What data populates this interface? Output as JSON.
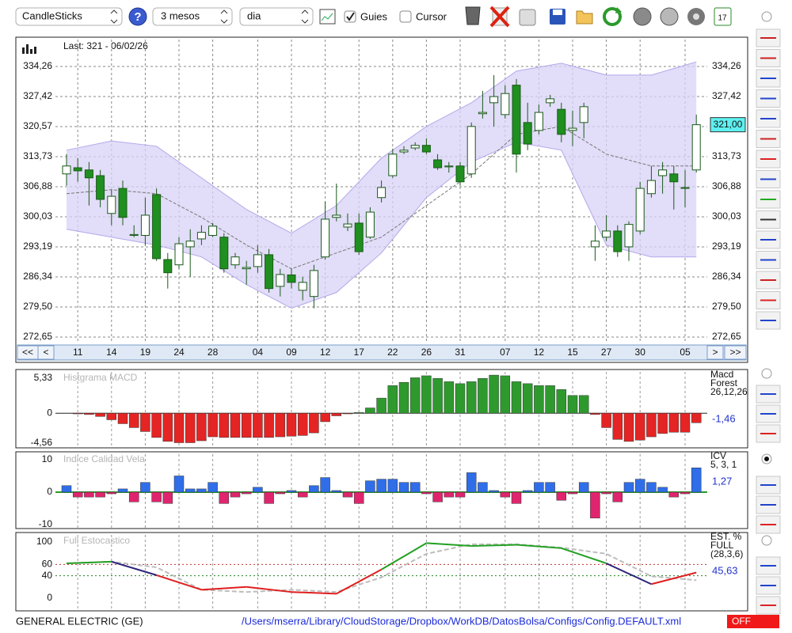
{
  "toolbar": {
    "chart_type": "CandleSticks",
    "help": "?",
    "period": "3 mesos",
    "interval": "dia",
    "guides": "Guies",
    "cursor": "Cursor",
    "calendar_day": "17"
  },
  "chart_data": [
    {
      "type": "candlestick",
      "last": "Last: 321 - 06/02/26",
      "current": 321.0,
      "current_label": "321,00",
      "ylim": [
        272.65,
        334.26
      ],
      "yticks": [
        {
          "value": 334.26,
          "label": "334,26"
        },
        {
          "value": 327.42,
          "label": "327,42"
        },
        {
          "value": 320.57,
          "label": "320,57"
        },
        {
          "value": 313.73,
          "label": "313,73"
        },
        {
          "value": 306.88,
          "label": "306,88"
        },
        {
          "value": 300.03,
          "label": "300,03"
        },
        {
          "value": 293.19,
          "label": "293,19"
        },
        {
          "value": 286.34,
          "label": "286,34"
        },
        {
          "value": 279.5,
          "label": "279,50"
        },
        {
          "value": 272.65,
          "label": "272,65"
        }
      ],
      "grid": true,
      "up_color": "#ffffff",
      "down_color": "#1f8f1f",
      "open": [
        309.8,
        311.2,
        310.7,
        309.4,
        300.8,
        306.5,
        295.8,
        295.8,
        305.1,
        290.3,
        289.1,
        293.2,
        295.0,
        295.8,
        295.4,
        289.1,
        288.2,
        288.7,
        291.4,
        284.2,
        286.8,
        283.3,
        281.9,
        290.9,
        299.9,
        297.7,
        298.6,
        295.4,
        304.4,
        309.4,
        314.8,
        315.7,
        316.3,
        313.0,
        311.4,
        311.6,
        309.8,
        323.5,
        326.0,
        323.3,
        330.0,
        321.5,
        319.7,
        326.0,
        324.5,
        319.7,
        321.5,
        293.2,
        295.4,
        296.8,
        293.2,
        296.8,
        305.3,
        309.4,
        309.8,
        306.5,
        310.7
      ],
      "high": [
        314.3,
        313.4,
        312.5,
        310.7,
        306.2,
        308.3,
        298.1,
        304.4,
        306.5,
        291.8,
        295.4,
        297.2,
        298.1,
        298.6,
        296.3,
        291.8,
        290.0,
        293.6,
        292.7,
        288.2,
        288.2,
        286.4,
        289.1,
        303.5,
        307.6,
        300.8,
        300.8,
        302.2,
        308.3,
        315.5,
        316.1,
        317.0,
        317.9,
        314.3,
        312.5,
        312.5,
        321.5,
        328.7,
        332.3,
        330.0,
        331.4,
        326.0,
        325.6,
        327.8,
        326.0,
        324.2,
        326.0,
        298.1,
        300.4,
        298.1,
        299.0,
        308.0,
        311.6,
        312.5,
        311.6,
        310.7,
        323.3
      ],
      "low": [
        307.1,
        308.0,
        302.6,
        302.2,
        298.1,
        298.1,
        295.4,
        293.6,
        290.0,
        283.7,
        288.2,
        286.4,
        293.6,
        295.4,
        287.3,
        288.2,
        284.6,
        287.3,
        282.8,
        281.9,
        283.7,
        281.0,
        279.2,
        290.3,
        299.0,
        296.8,
        291.4,
        295.0,
        303.3,
        308.9,
        314.3,
        315.2,
        314.3,
        310.7,
        310.1,
        307.1,
        308.9,
        322.4,
        320.6,
        322.4,
        310.1,
        315.2,
        318.8,
        325.1,
        317.0,
        316.1,
        317.9,
        290.0,
        294.5,
        290.9,
        290.0,
        296.1,
        304.4,
        305.3,
        301.7,
        302.2,
        310.1
      ],
      "close": [
        311.6,
        310.5,
        308.9,
        304.0,
        304.7,
        299.9,
        296.0,
        300.4,
        290.5,
        287.3,
        293.9,
        294.5,
        296.5,
        297.9,
        288.2,
        290.9,
        288.5,
        291.4,
        283.7,
        286.9,
        285.1,
        285.1,
        287.8,
        299.5,
        300.4,
        298.4,
        292.1,
        301.1,
        306.7,
        314.3,
        315.2,
        316.3,
        314.8,
        311.2,
        311.6,
        308.0,
        320.6,
        323.8,
        327.4,
        328.1,
        314.3,
        316.6,
        323.8,
        326.9,
        318.8,
        320.2,
        325.1,
        294.5,
        296.8,
        292.1,
        298.3,
        306.5,
        308.3,
        310.7,
        308.0,
        306.7,
        321.0
      ],
      "bands": {
        "x": [
          0,
          4,
          8,
          12,
          16,
          20,
          24,
          28,
          32,
          36,
          40,
          44,
          48,
          52,
          56
        ],
        "upper": [
          315.2,
          317.3,
          316.1,
          308.9,
          301.7,
          296.3,
          302.6,
          313.4,
          320.6,
          326.0,
          333.2,
          335.0,
          332.3,
          332.3,
          335.3
        ],
        "middle": [
          305.3,
          306.2,
          305.3,
          299.9,
          293.6,
          288.2,
          291.8,
          295.4,
          302.6,
          309.8,
          318.8,
          320.6,
          314.3,
          311.6,
          311.6
        ],
        "lower": [
          297.2,
          295.4,
          293.6,
          290.9,
          284.6,
          279.2,
          282.8,
          291.8,
          304.4,
          312.5,
          317.0,
          315.2,
          293.6,
          290.9,
          290.9
        ]
      },
      "date_ticks": [
        {
          "value": 1,
          "label": "11"
        },
        {
          "value": 4,
          "label": "14"
        },
        {
          "value": 7,
          "label": "19"
        },
        {
          "value": 10,
          "label": "24"
        },
        {
          "value": 13,
          "label": "28"
        },
        {
          "value": 17,
          "label": "04"
        },
        {
          "value": 20,
          "label": "09"
        },
        {
          "value": 23,
          "label": "12"
        },
        {
          "value": 26,
          "label": "17"
        },
        {
          "value": 29,
          "label": "22"
        },
        {
          "value": 32,
          "label": "26"
        },
        {
          "value": 35,
          "label": "31"
        },
        {
          "value": 39,
          "label": "07"
        },
        {
          "value": 42,
          "label": "12"
        },
        {
          "value": 45,
          "label": "15"
        },
        {
          "value": 48,
          "label": "27"
        },
        {
          "value": 51,
          "label": "30"
        },
        {
          "value": 55,
          "label": "05"
        }
      ],
      "nav": [
        "<<",
        "<",
        ">",
        ">>"
      ]
    },
    {
      "type": "histogram",
      "title": "Histgrama MACD",
      "legend": [
        "Macd",
        "Forest",
        "26,12,26"
      ],
      "current_label": "-1,46",
      "ylim": [
        -4.56,
        5.33
      ],
      "yticks": [
        {
          "value": 5.33,
          "label": "5,33"
        },
        0,
        {
          "value": -4.56,
          "label": "-4,56"
        }
      ],
      "pos_color": "#2e9a2e",
      "neg_color": "#e52424",
      "values": [
        0,
        -0.1,
        -0.2,
        -0.5,
        -1.0,
        -1.6,
        -2.2,
        -2.8,
        -3.7,
        -4.3,
        -4.5,
        -4.5,
        -4.2,
        -3.6,
        -3.7,
        -3.7,
        -3.7,
        -3.7,
        -3.7,
        -3.6,
        -3.5,
        -3.4,
        -3.0,
        -1.3,
        -0.4,
        -0.1,
        0.1,
        0.8,
        2.3,
        4.2,
        4.7,
        5.4,
        5.7,
        5.3,
        4.8,
        4.5,
        4.8,
        5.3,
        5.8,
        5.7,
        4.8,
        4.5,
        4.2,
        4.2,
        3.6,
        2.7,
        2.7,
        -0.2,
        -2.2,
        -4.0,
        -4.3,
        -4.1,
        -3.6,
        -3.1,
        -2.9,
        -2.9,
        -1.46
      ]
    },
    {
      "type": "histogram",
      "title": "Indice Calidad Vela",
      "legend": [
        "ICV",
        "5, 3, 1"
      ],
      "current_label": "1,27",
      "ylim": [
        -10,
        10
      ],
      "yticks": [
        10,
        0,
        -10
      ],
      "pos_color": "#2f6ee8",
      "neg_color": "#e0246e",
      "values": [
        2,
        -1.5,
        -1.5,
        -1.5,
        -0.5,
        1,
        -3,
        3,
        -3,
        -3.5,
        5,
        1,
        1,
        3,
        -3.5,
        -1.5,
        -0.5,
        1.5,
        -3.5,
        -0.5,
        0.5,
        -1.5,
        2,
        4.5,
        0.5,
        -1.5,
        -3.5,
        3.5,
        4,
        4,
        3,
        3,
        -0.5,
        -3,
        -1.5,
        -1.5,
        6,
        3,
        0.5,
        -1.5,
        -3.5,
        0.5,
        3,
        3,
        -2.5,
        -0.5,
        3,
        -8,
        -0.5,
        -3,
        3,
        4,
        3,
        1.5,
        -1.5,
        -0.5,
        7.5
      ]
    },
    {
      "type": "line",
      "title": "Full Estocastico",
      "legend": [
        "EST. %",
        "FULL",
        "(28,3,6)"
      ],
      "current_label": "45,63",
      "ylim": [
        0,
        100
      ],
      "yticks": [
        100,
        60,
        40,
        0
      ],
      "x": [
        0,
        4,
        8,
        12,
        16,
        20,
        24,
        28,
        32,
        36,
        40,
        44,
        48,
        52,
        56
      ],
      "series": [
        {
          "values": [
            62,
            65,
            41,
            15,
            20,
            11,
            8,
            51,
            98,
            93,
            95,
            89,
            62,
            25,
            45.63
          ],
          "colors": [
            "#22a022",
            "#2a237a",
            "#e01e1e"
          ]
        },
        {
          "values": [
            62,
            65,
            55,
            15,
            11,
            15,
            11,
            37,
            79,
            96,
            96,
            90,
            79,
            39,
            32
          ],
          "color": "#bdbdbd"
        }
      ]
    }
  ],
  "footer": {
    "symbol": "GENERAL ELECTRIC (GE)",
    "path": "/Users/mserra/Library/CloudStorage/Dropbox/WorkDB/DatosBolsa/Configs/Config.DEFAULT.xml",
    "status": "OFF"
  }
}
